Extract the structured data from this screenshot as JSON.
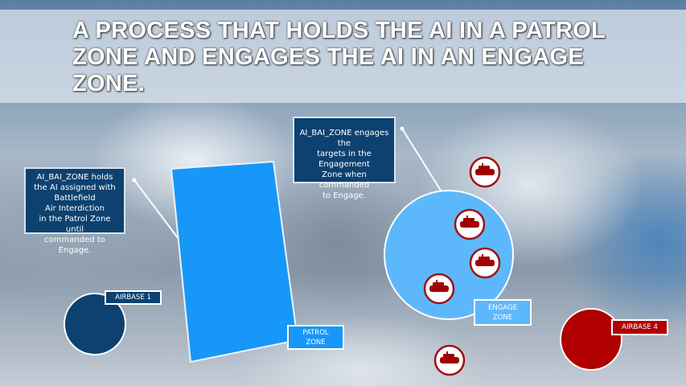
{
  "title": "A PROCESS THAT HOLDS THE AI IN A PATROL ZONE AND ENGAGES THE AI IN AN ENGAGE ZONE.",
  "callouts": {
    "patrol": [
      "AI_BAI_ZONE holds",
      "the AI assigned with",
      "Battlefield",
      "Air Interdiction",
      "in the Patrol Zone until",
      "commanded to Engage."
    ],
    "engage": [
      "AI_BAI_ZONE engages the",
      "targets in the Engagement",
      "Zone when commanded",
      "to Engage."
    ]
  },
  "labels": {
    "airbase1": "AIRBASE 1",
    "patrol_zone": [
      "PATROL",
      "ZONE"
    ],
    "engage_zone": [
      "ENGAGE",
      "ZONE"
    ],
    "airbase4": "AIRBASE 4"
  },
  "colors": {
    "patrol": "#1797f7",
    "engage": "#5db8fb",
    "blue_base": "#0d4170",
    "red": "#b00000"
  },
  "icons": {
    "target": "tank-icon"
  }
}
